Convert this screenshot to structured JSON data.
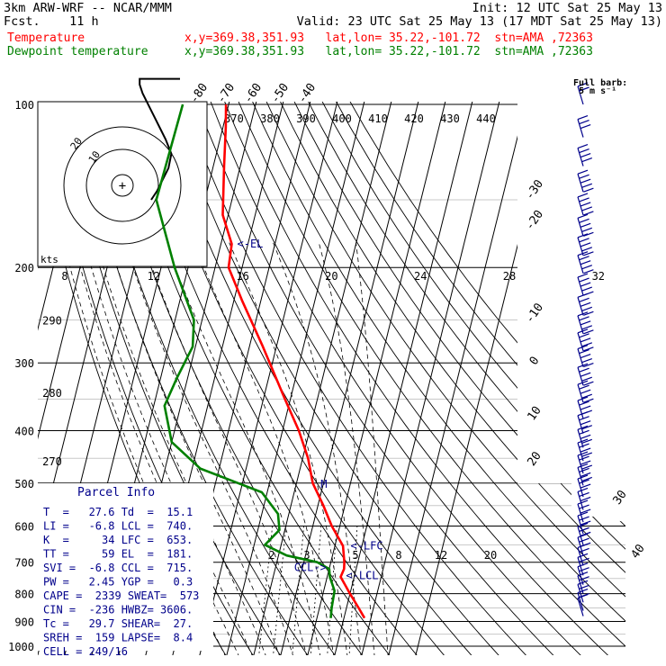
{
  "header": {
    "model": "3km ARW-WRF -- NCAR/MMM",
    "init": "Init: 12 UTC Sat 25 May 13",
    "fcst": "Fcst.    11 h",
    "valid": "Valid: 23 UTC Sat 25 May 13 (17 MDT Sat 25 May 13)",
    "temp_label": "Temperature",
    "temp_info": "x,y=369.38,351.93   lat,lon= 35.22,-101.72  stn=AMA ,72363",
    "dew_label": "Dewpoint temperature",
    "dew_info": "x,y=369.38,351.93   lat,lon= 35.22,-101.72  stn=AMA ,72363"
  },
  "barb_legend": {
    "line1": "Full barb:",
    "line2": "5 m s⁻¹"
  },
  "parcel": {
    "title": "Parcel Info",
    "rows": [
      "T  =   27.6 Td  =  15.1",
      "LI =   -6.8 LCL =  740.",
      "K  =     34 LFC =  653.",
      "TT =     59 EL  =  181.",
      "SVI =  -6.8 CCL =  715.",
      "PW =   2.45 YGP =   0.3",
      "CAPE =  2339 SWEAT=  573",
      "CIN =  -236 HWBZ= 3606.",
      "Tc =   29.7 SHEAR=  27.",
      "SREH =  159 LAPSE=  8.4",
      "CELL = 249/16"
    ]
  },
  "hodograph": {
    "units_label": "kts",
    "ring_labels": [
      "10",
      "20"
    ],
    "wind_u": [
      10,
      12,
      14,
      16,
      17,
      15,
      13,
      11,
      9,
      7,
      6,
      6,
      12,
      20
    ],
    "wind_v": [
      -5,
      -2,
      2,
      6,
      11,
      16,
      20,
      24,
      28,
      32,
      35,
      37,
      37,
      37
    ]
  },
  "chart_data": {
    "type": "line",
    "title": "",
    "pressure_labels": [
      "100",
      "200",
      "300",
      "400",
      "500",
      "600",
      "700",
      "800",
      "900",
      "1000"
    ],
    "pressure_levels": [
      100,
      200,
      300,
      400,
      500,
      600,
      700,
      800,
      900,
      1000
    ],
    "isotherm_labels": [
      {
        "label": "-80",
        "t": -80,
        "p": 100
      },
      {
        "label": "-70",
        "t": -70,
        "p": 100
      },
      {
        "label": "-60",
        "t": -60,
        "p": 100
      },
      {
        "label": "-50",
        "t": -50,
        "p": 100
      },
      {
        "label": "-40",
        "t": -40,
        "p": 100
      },
      {
        "label": "-30",
        "t": -30,
        "p": 145
      },
      {
        "label": "-20",
        "t": -20,
        "p": 165
      },
      {
        "label": "-10",
        "t": -10,
        "p": 245
      },
      {
        "label": "0",
        "t": 0,
        "p": 300
      },
      {
        "label": "10",
        "t": 10,
        "p": 375
      },
      {
        "label": "20",
        "t": 20,
        "p": 455
      },
      {
        "label": "30",
        "t": 30,
        "p": 560
      },
      {
        "label": "40",
        "t": 40,
        "p": 640
      }
    ],
    "theta_labels": [
      {
        "label": "370",
        "theta": 370
      },
      {
        "label": "380",
        "theta": 380
      },
      {
        "label": "390",
        "theta": 390
      },
      {
        "label": "400",
        "theta": 400
      },
      {
        "label": "410",
        "theta": 410
      },
      {
        "label": "420",
        "theta": 420
      },
      {
        "label": "430",
        "theta": 430
      },
      {
        "label": "440",
        "theta": 440
      }
    ],
    "mixing_ratio_labels": [
      {
        "label": "8",
        "w": 8,
        "p": 200
      },
      {
        "label": "12",
        "w": 12,
        "p": 200
      },
      {
        "label": "16",
        "w": 16,
        "p": 200
      },
      {
        "label": "20",
        "w": 20,
        "p": 200
      },
      {
        "label": "24",
        "w": 24,
        "p": 200
      },
      {
        "label": "28",
        "w": 28,
        "p": 200
      },
      {
        "label": "32",
        "w": 32,
        "p": 200
      },
      {
        "label": "2",
        "w": 2,
        "p": 700
      },
      {
        "label": "3",
        "w": 3,
        "p": 700
      },
      {
        "label": "5",
        "w": 5,
        "p": 700
      },
      {
        "label": "8",
        "w": 8,
        "p": 700
      },
      {
        "label": "12",
        "w": 12,
        "p": 700
      },
      {
        "label": "20",
        "w": 20,
        "p": 700
      }
    ],
    "wetbulb_labels": [
      {
        "label": "290",
        "p": 250
      },
      {
        "label": "280",
        "p": 340
      },
      {
        "label": "270",
        "p": 455
      }
    ],
    "markers": [
      {
        "label": "<-EL",
        "t": -56,
        "p": 181
      },
      {
        "label": "<-LFC",
        "t": 13.8,
        "p": 653
      },
      {
        "label": "CCL->",
        "t": 13.5,
        "p": 715
      },
      {
        "label": "<-LCL",
        "t": 14.8,
        "p": 740
      },
      {
        "label": "M",
        "t": 1,
        "p": 502
      }
    ],
    "series": [
      {
        "name": "Temperature",
        "color": "#ff0000",
        "points": [
          [
            100,
            -71
          ],
          [
            110,
            -69
          ],
          [
            130,
            -66
          ],
          [
            160,
            -62
          ],
          [
            181,
            -56
          ],
          [
            200,
            -55
          ],
          [
            230,
            -47
          ],
          [
            280,
            -35
          ],
          [
            350,
            -22
          ],
          [
            400,
            -14
          ],
          [
            450,
            -8
          ],
          [
            500,
            -4
          ],
          [
            550,
            2
          ],
          [
            600,
            7
          ],
          [
            653,
            13
          ],
          [
            700,
            15
          ],
          [
            720,
            15.5
          ],
          [
            745,
            15
          ],
          [
            800,
            20
          ],
          [
            850,
            24.5
          ],
          [
            887,
            27.6
          ]
        ]
      },
      {
        "name": "Dewpoint temperature",
        "color": "#008000",
        "points": [
          [
            100,
            -87
          ],
          [
            150,
            -88
          ],
          [
            200,
            -75
          ],
          [
            250,
            -63
          ],
          [
            280,
            -61
          ],
          [
            320,
            -64
          ],
          [
            360,
            -66
          ],
          [
            420,
            -60
          ],
          [
            470,
            -47
          ],
          [
            520,
            -22
          ],
          [
            570,
            -14
          ],
          [
            610,
            -12
          ],
          [
            650,
            -16
          ],
          [
            680,
            -7
          ],
          [
            700,
            5
          ],
          [
            720,
            10
          ],
          [
            745,
            11
          ],
          [
            790,
            14
          ],
          [
            850,
            14.5
          ],
          [
            887,
            15.1
          ]
        ]
      }
    ],
    "wind_barbs": [
      {
        "p": 100,
        "speed": 10
      },
      {
        "p": 115,
        "speed": 15
      },
      {
        "p": 130,
        "speed": 20
      },
      {
        "p": 145,
        "speed": 25
      },
      {
        "p": 160,
        "speed": 25
      },
      {
        "p": 175,
        "speed": 30
      },
      {
        "p": 190,
        "speed": 30
      },
      {
        "p": 205,
        "speed": 30
      },
      {
        "p": 225,
        "speed": 30
      },
      {
        "p": 245,
        "speed": 30
      },
      {
        "p": 265,
        "speed": 30
      },
      {
        "p": 285,
        "speed": 25
      },
      {
        "p": 305,
        "speed": 25
      },
      {
        "p": 330,
        "speed": 25
      },
      {
        "p": 355,
        "speed": 25
      },
      {
        "p": 380,
        "speed": 20
      },
      {
        "p": 405,
        "speed": 20
      },
      {
        "p": 430,
        "speed": 20
      },
      {
        "p": 455,
        "speed": 20
      },
      {
        "p": 480,
        "speed": 20
      },
      {
        "p": 505,
        "speed": 20
      },
      {
        "p": 530,
        "speed": 15
      },
      {
        "p": 560,
        "speed": 15
      },
      {
        "p": 590,
        "speed": 15
      },
      {
        "p": 620,
        "speed": 15
      },
      {
        "p": 650,
        "speed": 15
      },
      {
        "p": 680,
        "speed": 15
      },
      {
        "p": 710,
        "speed": 10
      },
      {
        "p": 740,
        "speed": 10
      },
      {
        "p": 770,
        "speed": 10
      },
      {
        "p": 800,
        "speed": 10
      },
      {
        "p": 830,
        "speed": 10
      },
      {
        "p": 860,
        "speed": 10
      },
      {
        "p": 880,
        "speed": 5
      }
    ],
    "colors": {
      "temperature": "#ff0000",
      "dewpoint": "#008000",
      "barbs": "#00008b",
      "parcel_text": "#00008b",
      "grid": "#000000",
      "markers": "#00008b"
    }
  }
}
